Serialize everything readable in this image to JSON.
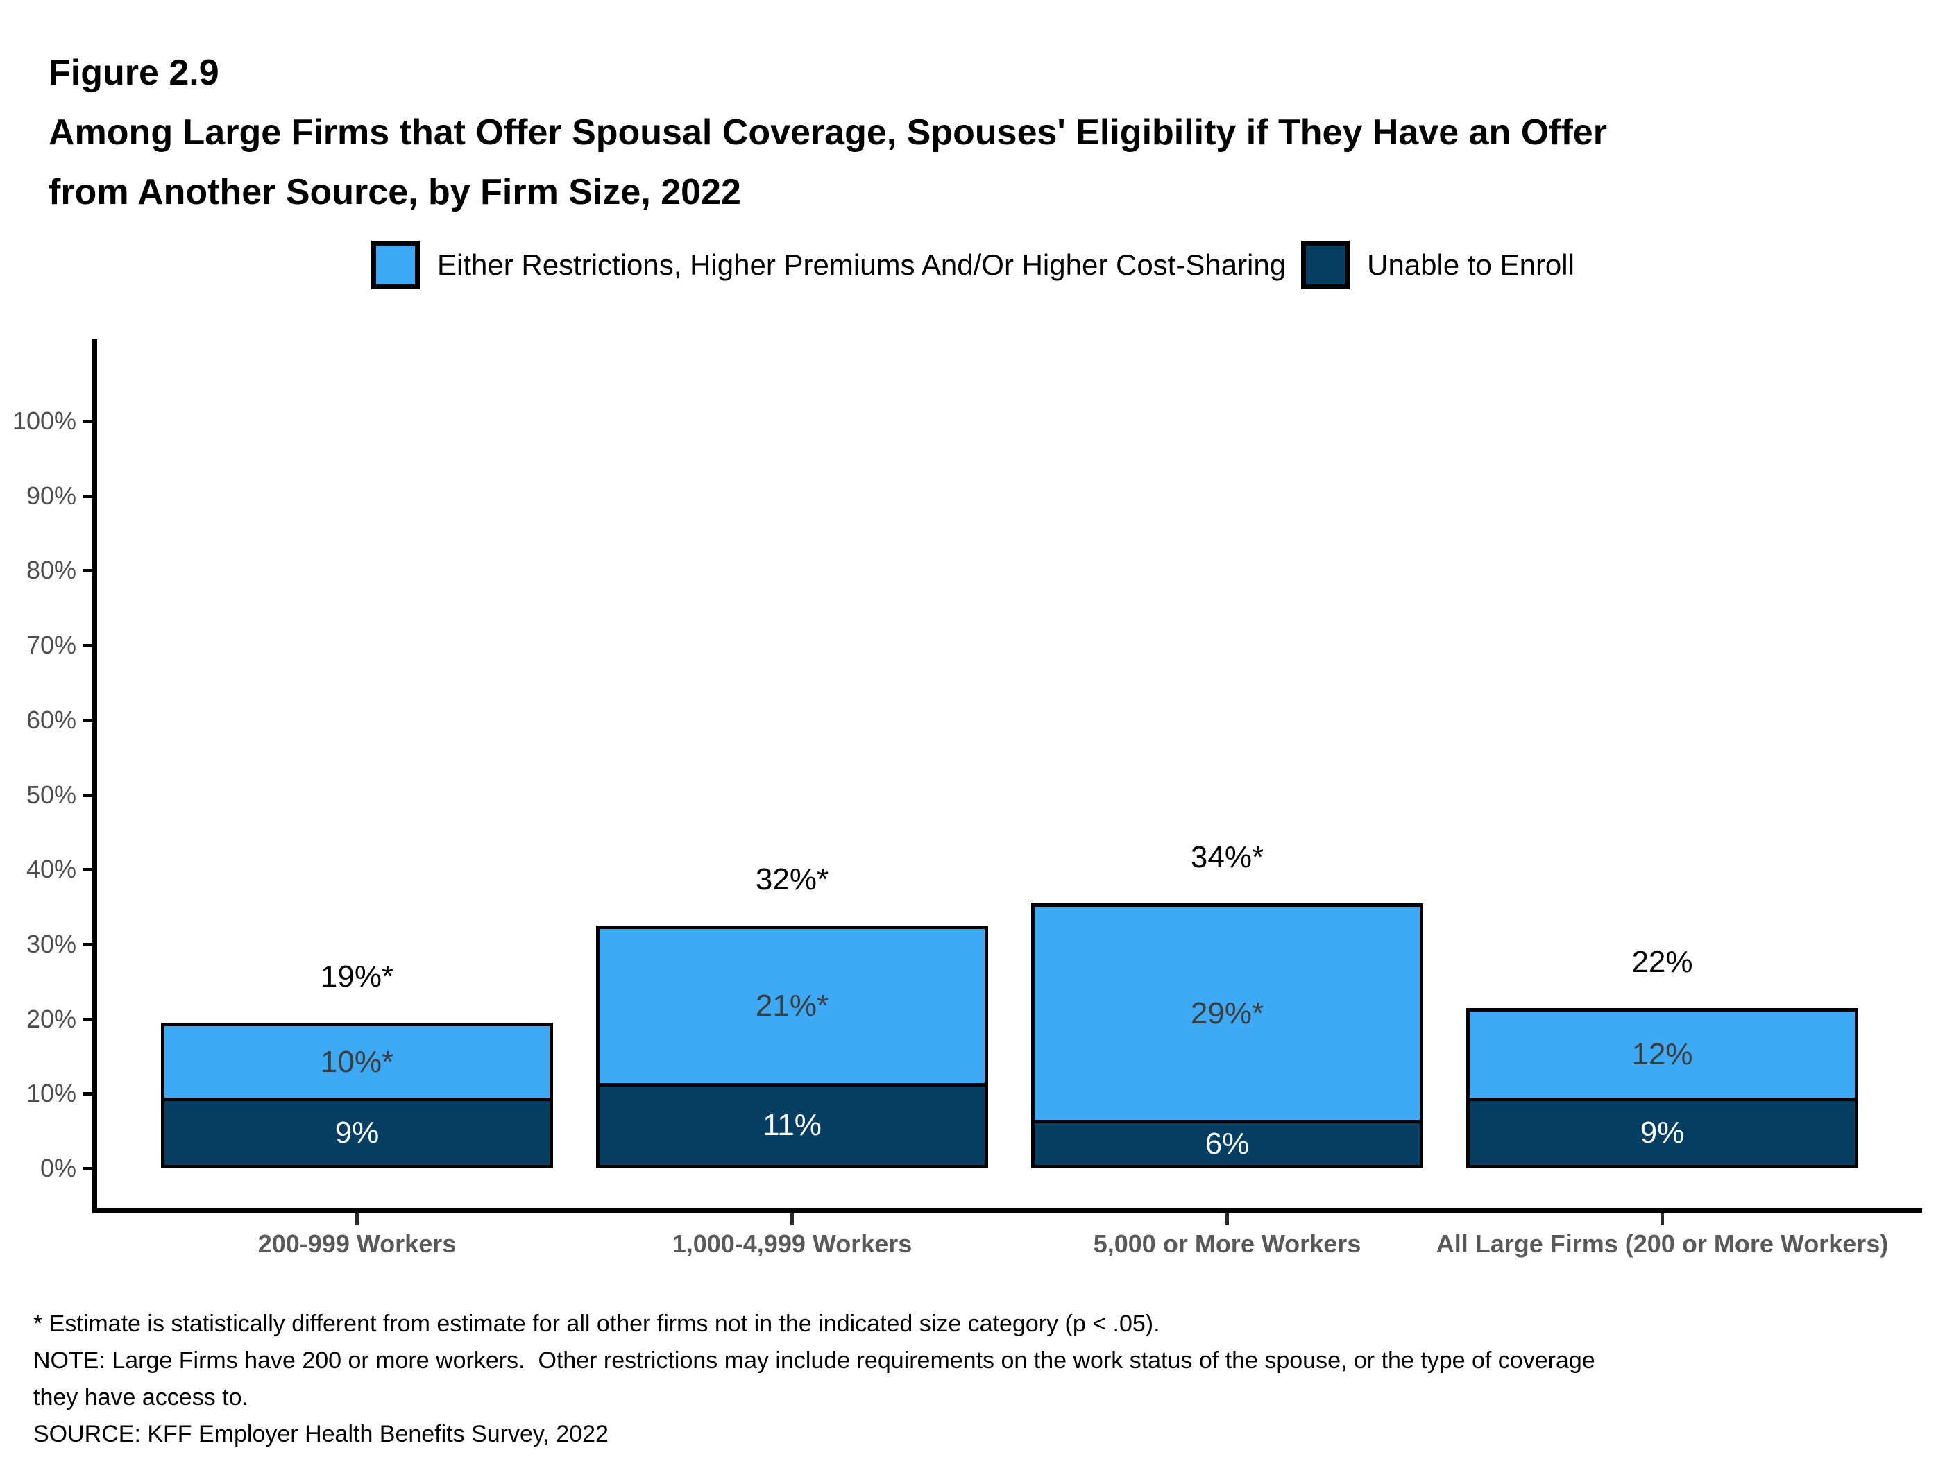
{
  "header": {
    "figure_label": "Figure 2.9",
    "title_line1": "Among Large Firms that Offer Spousal Coverage, Spouses' Eligibility if They Have an Offer",
    "title_line2": "from Another Source, by Firm Size, 2022"
  },
  "chart_data": {
    "type": "bar",
    "stacked": true,
    "title": "Among Large Firms that Offer Spousal Coverage, Spouses' Eligibility if They Have an Offer from Another Source, by Firm Size, 2022",
    "categories": [
      "200-999 Workers",
      "1,000-4,999 Workers",
      "5,000 or More Workers",
      "All Large Firms (200 or More Workers)"
    ],
    "series": [
      {
        "name": "Either Restrictions, Higher Premiums And/Or Higher Cost-Sharing",
        "color": "#3EA9F7",
        "label_color": "#3d3d3d",
        "values": [
          10,
          21,
          29,
          12
        ],
        "value_labels": [
          "10%*",
          "21%*",
          "29%*",
          "12%"
        ]
      },
      {
        "name": "Unable to Enroll",
        "color": "#043E63",
        "label_color": "#ffffff",
        "values": [
          9,
          11,
          6,
          9
        ],
        "value_labels": [
          "9%",
          "11%",
          "6%",
          "9%"
        ]
      }
    ],
    "totals": {
      "values": [
        19,
        32,
        34,
        22
      ],
      "labels": [
        "19%*",
        "32%*",
        "34%*",
        "22%"
      ]
    },
    "y_axis": {
      "min": 0,
      "max": 100,
      "tick_labels": [
        "0%",
        "10%",
        "20%",
        "30%",
        "40%",
        "50%",
        "60%",
        "70%",
        "80%",
        "90%",
        "100%"
      ]
    },
    "legend_position": "top",
    "grid": false
  },
  "footnotes": {
    "asterisk": "* Estimate is statistically different from estimate for all other firms not in the indicated size category (p < .05).",
    "note_line1": "NOTE: Large Firms have 200 or more workers.  Other restrictions may include requirements on the work status of the spouse, or the type of coverage",
    "note_line2": "they have access to.",
    "source": "SOURCE: KFF Employer Health Benefits Survey, 2022"
  },
  "colors": {
    "light_blue": "#3EA9F7",
    "dark_blue": "#043E63",
    "bar_border": "#000000",
    "axis_text": "#4d4d4d",
    "category_text": "#595959"
  }
}
